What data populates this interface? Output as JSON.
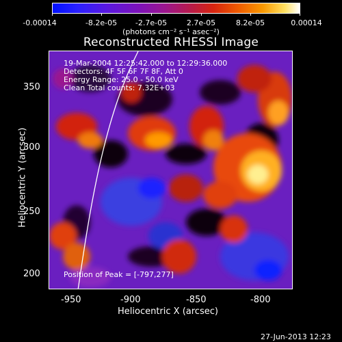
{
  "colorbar": {
    "tick_labels": [
      "-0.00014",
      "-8.2e-05",
      "-2.7e-05",
      "2.7e-05",
      "8.2e-05",
      "0.00014"
    ],
    "units": "(photons cm⁻² s⁻¹ asec⁻²)"
  },
  "plot": {
    "title": "Reconstructed RHESSI Image",
    "xlabel": "Heliocentric X (arcsec)",
    "ylabel": "Heliocentric Y (arcsec)",
    "xticks": [
      "-950",
      "-900",
      "-850",
      "-800"
    ],
    "yticks": [
      "200",
      "250",
      "300",
      "350"
    ]
  },
  "annotations": {
    "time_range": "19-Mar-2004 12:25:42.000 to 12:29:36.000",
    "detectors": "Detectors: 4F 5F 6F 7F 8F, Att 0",
    "energy": "Energy Range: 25.0 - 50.0 keV",
    "clean": "Clean    Total counts: 7.32E+03",
    "peak": "Position of Peak = [-797,277]"
  },
  "footer": {
    "date": "27-Jun-2013 12:23"
  },
  "chart_data": {
    "type": "heatmap",
    "title": "Reconstructed RHESSI Image",
    "xlabel": "Heliocentric X (arcsec)",
    "ylabel": "Heliocentric Y (arcsec)",
    "xlim": [
      -965,
      -775
    ],
    "ylim": [
      188,
      375
    ],
    "colorbar_range": [
      -0.00014,
      0.00014
    ],
    "peak": [
      -797,
      277
    ],
    "colors": {
      "low": "#0000ff",
      "mid": "#7a00ff",
      "high": "#ffffff"
    }
  }
}
